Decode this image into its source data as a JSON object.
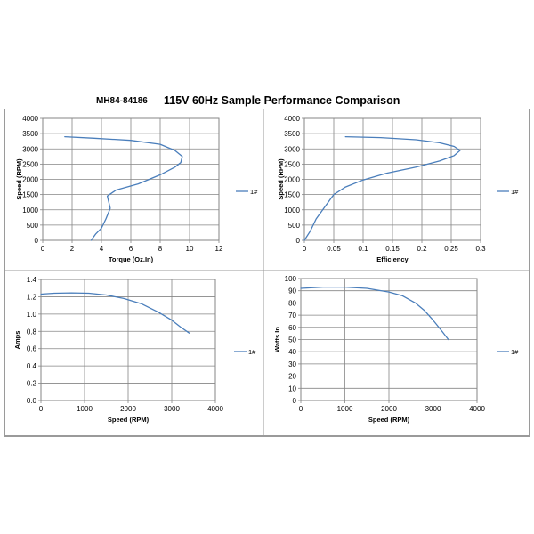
{
  "header": {
    "model": "MH84-84186",
    "title": "115V 60Hz Sample Performance Comparison"
  },
  "colors": {
    "series": "#4a7ebb",
    "grid": "#868686"
  },
  "chart_data": [
    {
      "type": "line",
      "name": "speed-vs-torque",
      "xlabel": "Torque (Oz.In)",
      "ylabel": "Speed (RPM)",
      "xlim": [
        0,
        12
      ],
      "ylim": [
        0,
        4000
      ],
      "xticks": [
        "0",
        "2",
        "4",
        "6",
        "8",
        "10",
        "12"
      ],
      "yticks": [
        "0",
        "500",
        "1000",
        "1500",
        "2000",
        "2500",
        "3000",
        "3500",
        "4000"
      ],
      "grid": true,
      "legend": "right",
      "series": [
        {
          "name": "1#",
          "x": [
            1.5,
            3.5,
            6,
            8,
            9,
            9.5,
            9.4,
            9,
            8,
            6.5,
            5,
            4.4,
            4.6,
            4.3,
            4.0,
            3.6,
            3.3
          ],
          "y": [
            3400,
            3350,
            3280,
            3150,
            2950,
            2750,
            2550,
            2400,
            2150,
            1850,
            1650,
            1450,
            1050,
            700,
            400,
            200,
            0
          ]
        }
      ]
    },
    {
      "type": "line",
      "name": "speed-vs-efficiency",
      "xlabel": "Efficiency",
      "ylabel": "Speed (RPM)",
      "xlim": [
        0,
        0.3
      ],
      "ylim": [
        0,
        4000
      ],
      "xticks": [
        "0",
        "0.05",
        "0.1",
        "0.15",
        "0.2",
        "0.25",
        "0.3"
      ],
      "yticks": [
        "0",
        "500",
        "1000",
        "1500",
        "2000",
        "2500",
        "3000",
        "3500",
        "4000"
      ],
      "grid": true,
      "legend": "right",
      "series": [
        {
          "name": "1#",
          "x": [
            0.07,
            0.13,
            0.19,
            0.23,
            0.255,
            0.265,
            0.255,
            0.23,
            0.19,
            0.14,
            0.1,
            0.07,
            0.05,
            0.035,
            0.02,
            0.01,
            0.0
          ],
          "y": [
            3400,
            3370,
            3300,
            3200,
            3080,
            2950,
            2780,
            2600,
            2400,
            2200,
            1980,
            1750,
            1500,
            1100,
            700,
            300,
            0
          ]
        }
      ]
    },
    {
      "type": "line",
      "name": "amps-vs-speed",
      "xlabel": "Speed (RPM)",
      "ylabel": "Amps",
      "xlim": [
        0,
        4000
      ],
      "ylim": [
        0,
        1.4
      ],
      "xticks": [
        "0",
        "1000",
        "2000",
        "3000",
        "4000"
      ],
      "yticks": [
        "0.0",
        "0.2",
        "0.4",
        "0.6",
        "0.8",
        "1.0",
        "1.2",
        "1.4"
      ],
      "grid": true,
      "legend": "right",
      "series": [
        {
          "name": "1#",
          "x": [
            0,
            300,
            700,
            1100,
            1500,
            1900,
            2300,
            2700,
            3000,
            3200,
            3400
          ],
          "y": [
            1.23,
            1.24,
            1.245,
            1.24,
            1.22,
            1.18,
            1.12,
            1.02,
            0.93,
            0.85,
            0.78
          ]
        }
      ]
    },
    {
      "type": "line",
      "name": "watts-in-vs-speed",
      "xlabel": "Speed (RPM)",
      "ylabel": "Watts In",
      "xlim": [
        0,
        4000
      ],
      "ylim": [
        0,
        100
      ],
      "xticks": [
        "0",
        "1000",
        "2000",
        "3000",
        "4000"
      ],
      "yticks": [
        "0",
        "10",
        "20",
        "30",
        "40",
        "50",
        "60",
        "70",
        "80",
        "90",
        "100"
      ],
      "grid": true,
      "legend": "right",
      "series": [
        {
          "name": "1#",
          "x": [
            0,
            500,
            1000,
            1500,
            2000,
            2300,
            2600,
            2800,
            3000,
            3200,
            3350
          ],
          "y": [
            92,
            93,
            93,
            92,
            89,
            86,
            80,
            74,
            66,
            57,
            50
          ]
        }
      ]
    }
  ]
}
